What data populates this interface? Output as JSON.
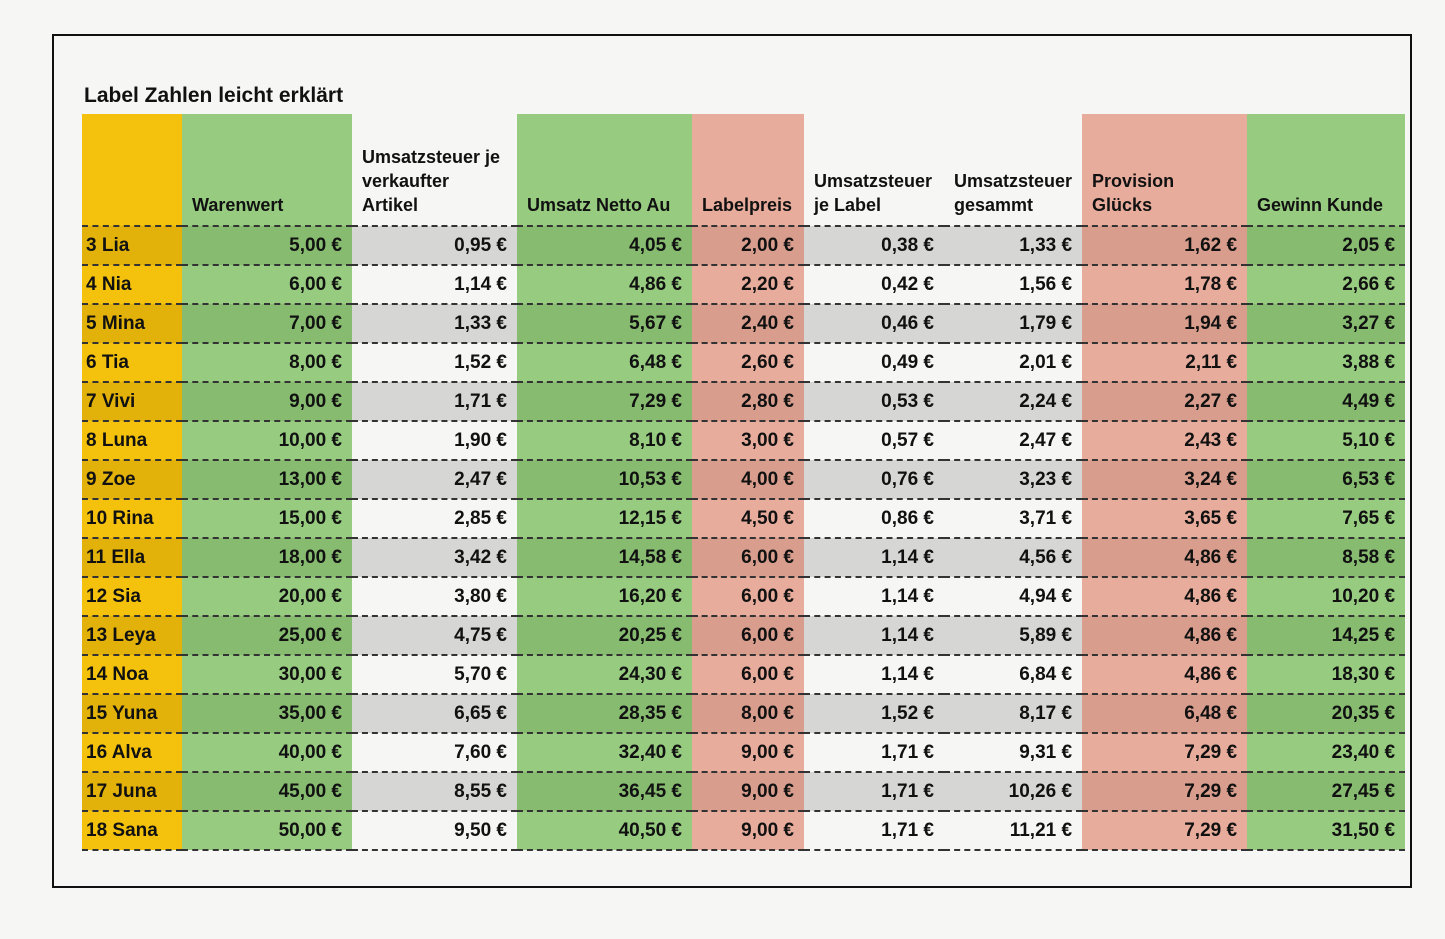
{
  "title": "Label Zahlen leicht erklärt",
  "table": {
    "header": [
      "Warenwert",
      "Umsatzsteuer je verkaufter Artikel",
      "Umsatz Netto Au",
      "Labelpreis",
      "Umsatzsteuer je Label",
      "Umsatzsteuer gesammt",
      "Provision Glücks",
      "Gewinn Kunde"
    ],
    "rows": [
      [
        "3 Lia",
        "5,00 €",
        "0,95 €",
        "4,05 €",
        "2,00 €",
        "0,38 €",
        "1,33 €",
        "1,62 €",
        "2,05 €"
      ],
      [
        "4 Nia",
        "6,00 €",
        "1,14 €",
        "4,86 €",
        "2,20 €",
        "0,42 €",
        "1,56 €",
        "1,78 €",
        "2,66 €"
      ],
      [
        "5 Mina",
        "7,00 €",
        "1,33 €",
        "5,67 €",
        "2,40 €",
        "0,46 €",
        "1,79 €",
        "1,94 €",
        "3,27 €"
      ],
      [
        "6 Tia",
        "8,00 €",
        "1,52 €",
        "6,48 €",
        "2,60 €",
        "0,49 €",
        "2,01 €",
        "2,11 €",
        "3,88 €"
      ],
      [
        "7 Vivi",
        "9,00 €",
        "1,71 €",
        "7,29 €",
        "2,80 €",
        "0,53 €",
        "2,24 €",
        "2,27 €",
        "4,49 €"
      ],
      [
        "8 Luna",
        "10,00 €",
        "1,90 €",
        "8,10 €",
        "3,00 €",
        "0,57 €",
        "2,47 €",
        "2,43 €",
        "5,10 €"
      ],
      [
        "9 Zoe",
        "13,00 €",
        "2,47 €",
        "10,53 €",
        "4,00 €",
        "0,76 €",
        "3,23 €",
        "3,24 €",
        "6,53 €"
      ],
      [
        "10 Rina",
        "15,00 €",
        "2,85 €",
        "12,15 €",
        "4,50 €",
        "0,86 €",
        "3,71 €",
        "3,65 €",
        "7,65 €"
      ],
      [
        "11 Ella",
        "18,00 €",
        "3,42 €",
        "14,58 €",
        "6,00 €",
        "1,14 €",
        "4,56 €",
        "4,86 €",
        "8,58 €"
      ],
      [
        "12 Sia",
        "20,00 €",
        "3,80 €",
        "16,20 €",
        "6,00 €",
        "1,14 €",
        "4,94 €",
        "4,86 €",
        "10,20 €"
      ],
      [
        "13 Leya",
        "25,00 €",
        "4,75 €",
        "20,25 €",
        "6,00 €",
        "1,14 €",
        "5,89 €",
        "4,86 €",
        "14,25 €"
      ],
      [
        "14 Noa",
        "30,00 €",
        "5,70 €",
        "24,30 €",
        "6,00 €",
        "1,14 €",
        "6,84 €",
        "4,86 €",
        "18,30 €"
      ],
      [
        "15 Yuna",
        "35,00 €",
        "6,65 €",
        "28,35 €",
        "8,00 €",
        "1,52 €",
        "8,17 €",
        "6,48 €",
        "20,35 €"
      ],
      [
        "16 Alva",
        "40,00 €",
        "7,60 €",
        "32,40 €",
        "9,00 €",
        "1,71 €",
        "9,31 €",
        "7,29 €",
        "23,40 €"
      ],
      [
        "17 Juna",
        "45,00 €",
        "8,55 €",
        "36,45 €",
        "9,00 €",
        "1,71 €",
        "10,26 €",
        "7,29 €",
        "27,45 €"
      ],
      [
        "18 Sana",
        "50,00 €",
        "9,50 €",
        "40,50 €",
        "9,00 €",
        "1,71 €",
        "11,21 €",
        "7,29 €",
        "31,50 €"
      ]
    ]
  }
}
